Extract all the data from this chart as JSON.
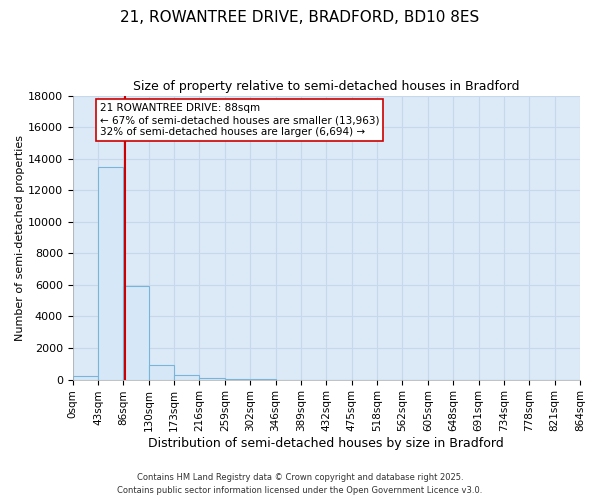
{
  "title_line1": "21, ROWANTREE DRIVE, BRADFORD, BD10 8ES",
  "title_line2": "Size of property relative to semi-detached houses in Bradford",
  "xlabel": "Distribution of semi-detached houses by size in Bradford",
  "ylabel": "Number of semi-detached properties",
  "bar_edges": [
    0,
    43,
    86,
    129,
    172,
    215,
    258,
    301,
    344,
    387,
    430,
    473,
    516,
    559,
    602,
    645,
    688,
    731,
    774,
    817,
    860
  ],
  "bar_heights": [
    200,
    13500,
    5900,
    950,
    290,
    100,
    50,
    20,
    0,
    0,
    0,
    0,
    0,
    0,
    0,
    0,
    0,
    0,
    0,
    0
  ],
  "bar_color": "#d6e8f7",
  "bar_edgecolor": "#7ab4d8",
  "property_value": 88,
  "vline_color": "#cc0000",
  "annotation_title": "21 ROWANTREE DRIVE: 88sqm",
  "annotation_line2": "← 67% of semi-detached houses are smaller (13,963)",
  "annotation_line3": "32% of semi-detached houses are larger (6,694) →",
  "annotation_box_edgecolor": "#cc0000",
  "annotation_box_facecolor": "#ffffff",
  "ylim": [
    0,
    18000
  ],
  "yticks": [
    0,
    2000,
    4000,
    6000,
    8000,
    10000,
    12000,
    14000,
    16000,
    18000
  ],
  "xtick_labels": [
    "0sqm",
    "43sqm",
    "86sqm",
    "130sqm",
    "173sqm",
    "216sqm",
    "259sqm",
    "302sqm",
    "346sqm",
    "389sqm",
    "432sqm",
    "475sqm",
    "518sqm",
    "562sqm",
    "605sqm",
    "648sqm",
    "691sqm",
    "734sqm",
    "778sqm",
    "821sqm",
    "864sqm"
  ],
  "footer_line1": "Contains HM Land Registry data © Crown copyright and database right 2025.",
  "footer_line2": "Contains public sector information licensed under the Open Government Licence v3.0.",
  "fig_bg_color": "#ffffff",
  "plot_bg_color": "#dce9f7",
  "grid_color": "#c8d8ec"
}
